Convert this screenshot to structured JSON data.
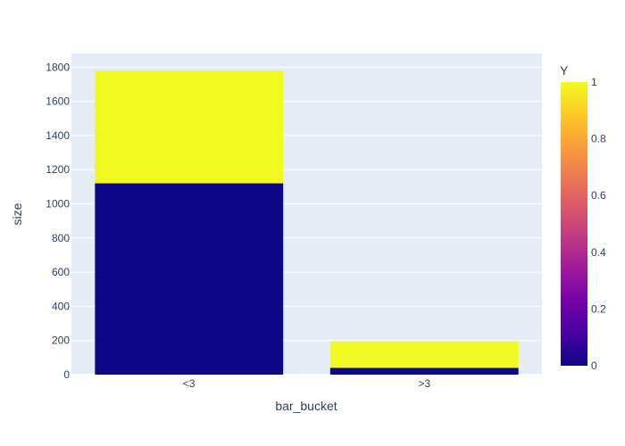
{
  "chart_data": {
    "type": "bar",
    "barmode": "stack",
    "categories": [
      "<3",
      ">3"
    ],
    "xlabel": "bar_bucket",
    "ylabel": "size",
    "ylim": [
      0,
      1880
    ],
    "yticks": [
      0,
      200,
      400,
      600,
      800,
      1000,
      1200,
      1400,
      1600,
      1800
    ],
    "series": [
      {
        "color_value": 0,
        "color": "#0d0887",
        "values": [
          1120,
          40
        ]
      },
      {
        "color_value": 1,
        "color": "#f0f921",
        "values": [
          660,
          155
        ]
      }
    ],
    "colorbar": {
      "title": "Y",
      "range": [
        0,
        1
      ],
      "ticks": [
        "0",
        "0.2",
        "0.4",
        "0.6",
        "0.8",
        "1"
      ],
      "colorscale": [
        "#0d0887",
        "#46039f",
        "#7201a8",
        "#9c179e",
        "#bd3786",
        "#d8576b",
        "#ed7953",
        "#fb9f3a",
        "#fdca26",
        "#f0f921"
      ]
    },
    "grid": true,
    "plot_bgcolor": "#e5ecf6"
  }
}
